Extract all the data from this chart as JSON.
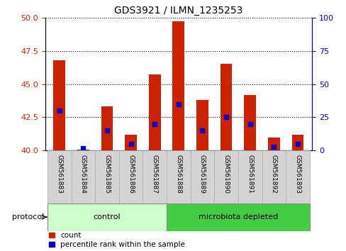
{
  "title": "GDS3921 / ILMN_1235253",
  "samples": [
    "GSM561883",
    "GSM561884",
    "GSM561885",
    "GSM561886",
    "GSM561887",
    "GSM561888",
    "GSM561889",
    "GSM561890",
    "GSM561891",
    "GSM561892",
    "GSM561893"
  ],
  "count_values": [
    46.8,
    40.1,
    43.3,
    41.2,
    45.7,
    49.7,
    43.8,
    46.5,
    44.2,
    41.0,
    41.2
  ],
  "percentile_values": [
    30,
    2,
    15,
    5,
    20,
    35,
    15,
    25,
    20,
    3,
    5
  ],
  "ylim_left": [
    40,
    50
  ],
  "ylim_right": [
    0,
    100
  ],
  "yticks_left": [
    40,
    42.5,
    45,
    47.5,
    50
  ],
  "yticks_right": [
    0,
    25,
    50,
    75,
    100
  ],
  "bar_color": "#cc2200",
  "dot_color": "#0000cc",
  "control_color": "#ccffcc",
  "microbiota_color": "#44cc44",
  "legend_items": [
    {
      "label": "count",
      "color": "#cc2200"
    },
    {
      "label": "percentile rank within the sample",
      "color": "#0000cc"
    }
  ],
  "bar_width": 0.5,
  "xlim": [
    -0.6,
    10.6
  ],
  "names_box_color": "#d4d4d4",
  "names_box_edge": "#aaaaaa"
}
